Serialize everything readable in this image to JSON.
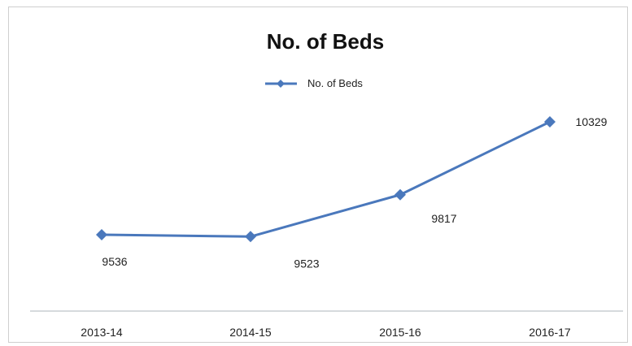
{
  "chart_data": {
    "type": "line",
    "title": "No. of Beds",
    "categories": [
      "2013-14",
      "2014-15",
      "2015-16",
      "2016-17"
    ],
    "series": [
      {
        "name": "No. of Beds",
        "values": [
          9536,
          9523,
          9817,
          10329
        ],
        "color": "#4a78bc"
      }
    ],
    "data_labels": [
      "9536",
      "9523",
      "9817",
      "10329"
    ],
    "xlabel": "",
    "ylabel": "",
    "ylim": [
      9000,
      10500
    ],
    "grid": false,
    "legend": "top-center",
    "marker": "diamond"
  }
}
